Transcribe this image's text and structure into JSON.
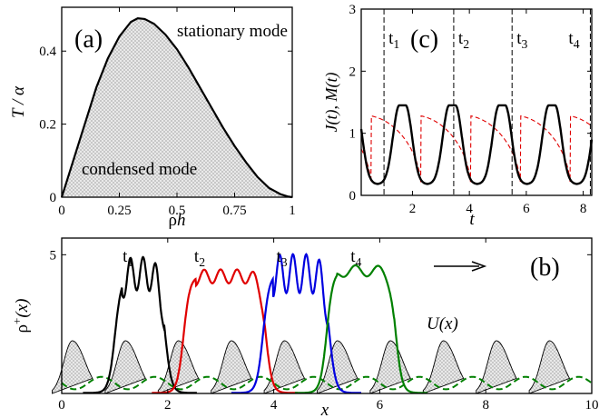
{
  "colors": {
    "black": "#000000",
    "red": "#e00000",
    "blue": "#0000e0",
    "green": "#008000",
    "mode_text": "#1a1ad0",
    "stipple_bg": "#e6e6e6"
  },
  "chart_data": [
    {
      "id": "a",
      "type": "area",
      "panel_label": "(a)",
      "xlabel_main": "ρ",
      "xlabel_ital": "h",
      "ylabel": "T / α",
      "xlim": [
        0,
        1
      ],
      "ylim": [
        0,
        0.52
      ],
      "xticks": [
        0,
        0.25,
        0.5,
        0.75,
        1
      ],
      "xtick_labels": [
        "0",
        "0.25",
        "0.5",
        "0.75",
        "1"
      ],
      "yticks": [
        0,
        0.2,
        0.4
      ],
      "ytick_labels": [
        "0",
        "0.2",
        "0.4"
      ],
      "annotations": [
        "stationary mode",
        "condensed mode"
      ],
      "series": [
        {
          "x": [
            0,
            0.02,
            0.05,
            0.1,
            0.15,
            0.2,
            0.25,
            0.3,
            0.33,
            0.36,
            0.4,
            0.45,
            0.5,
            0.55,
            0.6,
            0.65,
            0.7,
            0.75,
            0.8,
            0.85,
            0.9,
            0.95,
            0.98,
            1.0
          ],
          "values": [
            0,
            0.04,
            0.1,
            0.2,
            0.3,
            0.38,
            0.44,
            0.48,
            0.49,
            0.488,
            0.475,
            0.445,
            0.405,
            0.355,
            0.3,
            0.245,
            0.19,
            0.14,
            0.095,
            0.055,
            0.025,
            0.008,
            0.002,
            0
          ]
        }
      ]
    },
    {
      "id": "c",
      "type": "line",
      "panel_label": "(c)",
      "xlabel": "t",
      "ylabel": "J(t), M(t)",
      "xlim": [
        0.2,
        8.3
      ],
      "ylim": [
        0,
        3
      ],
      "xticks": [
        2,
        4,
        6,
        8
      ],
      "xtick_labels": [
        "2",
        "4",
        "6",
        "8"
      ],
      "yticks": [
        0,
        1,
        2,
        3
      ],
      "ytick_labels": [
        "0",
        "1",
        "2",
        "3"
      ],
      "markers": [
        {
          "t": 1.0,
          "label": "t1"
        },
        {
          "t": 3.45,
          "label": "t2"
        },
        {
          "t": 5.5,
          "label": "t3"
        },
        {
          "t": 8.25,
          "label": "t4"
        }
      ],
      "series": [
        {
          "style": "solid-black",
          "period": 1.75,
          "phase": 1.65,
          "base": 0.18,
          "peak": 1.45,
          "width": 0.38,
          "plateau": 0.22
        },
        {
          "style": "dashed-red",
          "period": 1.75,
          "phase": 0.55,
          "min": 0.1,
          "max": 1.28
        }
      ]
    },
    {
      "id": "b",
      "type": "line",
      "panel_label": "(b)",
      "xlabel": "x",
      "ylabel": "ρ+(x)",
      "potential_label": "U(x)",
      "xlim": [
        0,
        10
      ],
      "ylim": [
        0,
        5.6
      ],
      "xticks": [
        0,
        2,
        4,
        6,
        8,
        10
      ],
      "xtick_labels": [
        "0",
        "2",
        "4",
        "6",
        "8",
        "10"
      ],
      "yticks": [
        5
      ],
      "ytick_labels": [
        "5"
      ],
      "arrow": "right",
      "snapshots": [
        {
          "label": "t1",
          "color": "black",
          "left": 1.0,
          "right": 1.95,
          "height": 4.3,
          "ripple": 0.6,
          "ripples": 4,
          "shoulder": 0.35
        },
        {
          "label": "t2",
          "color": "red",
          "left": 2.3,
          "right": 3.85,
          "height": 4.2,
          "ripple": 0.25,
          "ripples": 5,
          "shoulder": 0
        },
        {
          "label": "t3",
          "color": "blue",
          "left": 3.8,
          "right": 5.05,
          "height": 4.3,
          "ripple": 0.7,
          "ripples": 5,
          "shoulder": 0
        },
        {
          "label": "t4",
          "color": "green",
          "left": 5.0,
          "right": 6.3,
          "height": 4.4,
          "ripple": 0.2,
          "ripples": 3,
          "shoulder": 0
        }
      ],
      "potential": {
        "period": 1.0,
        "offset": 0.2,
        "height": 1.9
      },
      "dashed_green_wave": {
        "period": 1.0,
        "amplitude": 0.45,
        "base": 0.15
      }
    }
  ]
}
